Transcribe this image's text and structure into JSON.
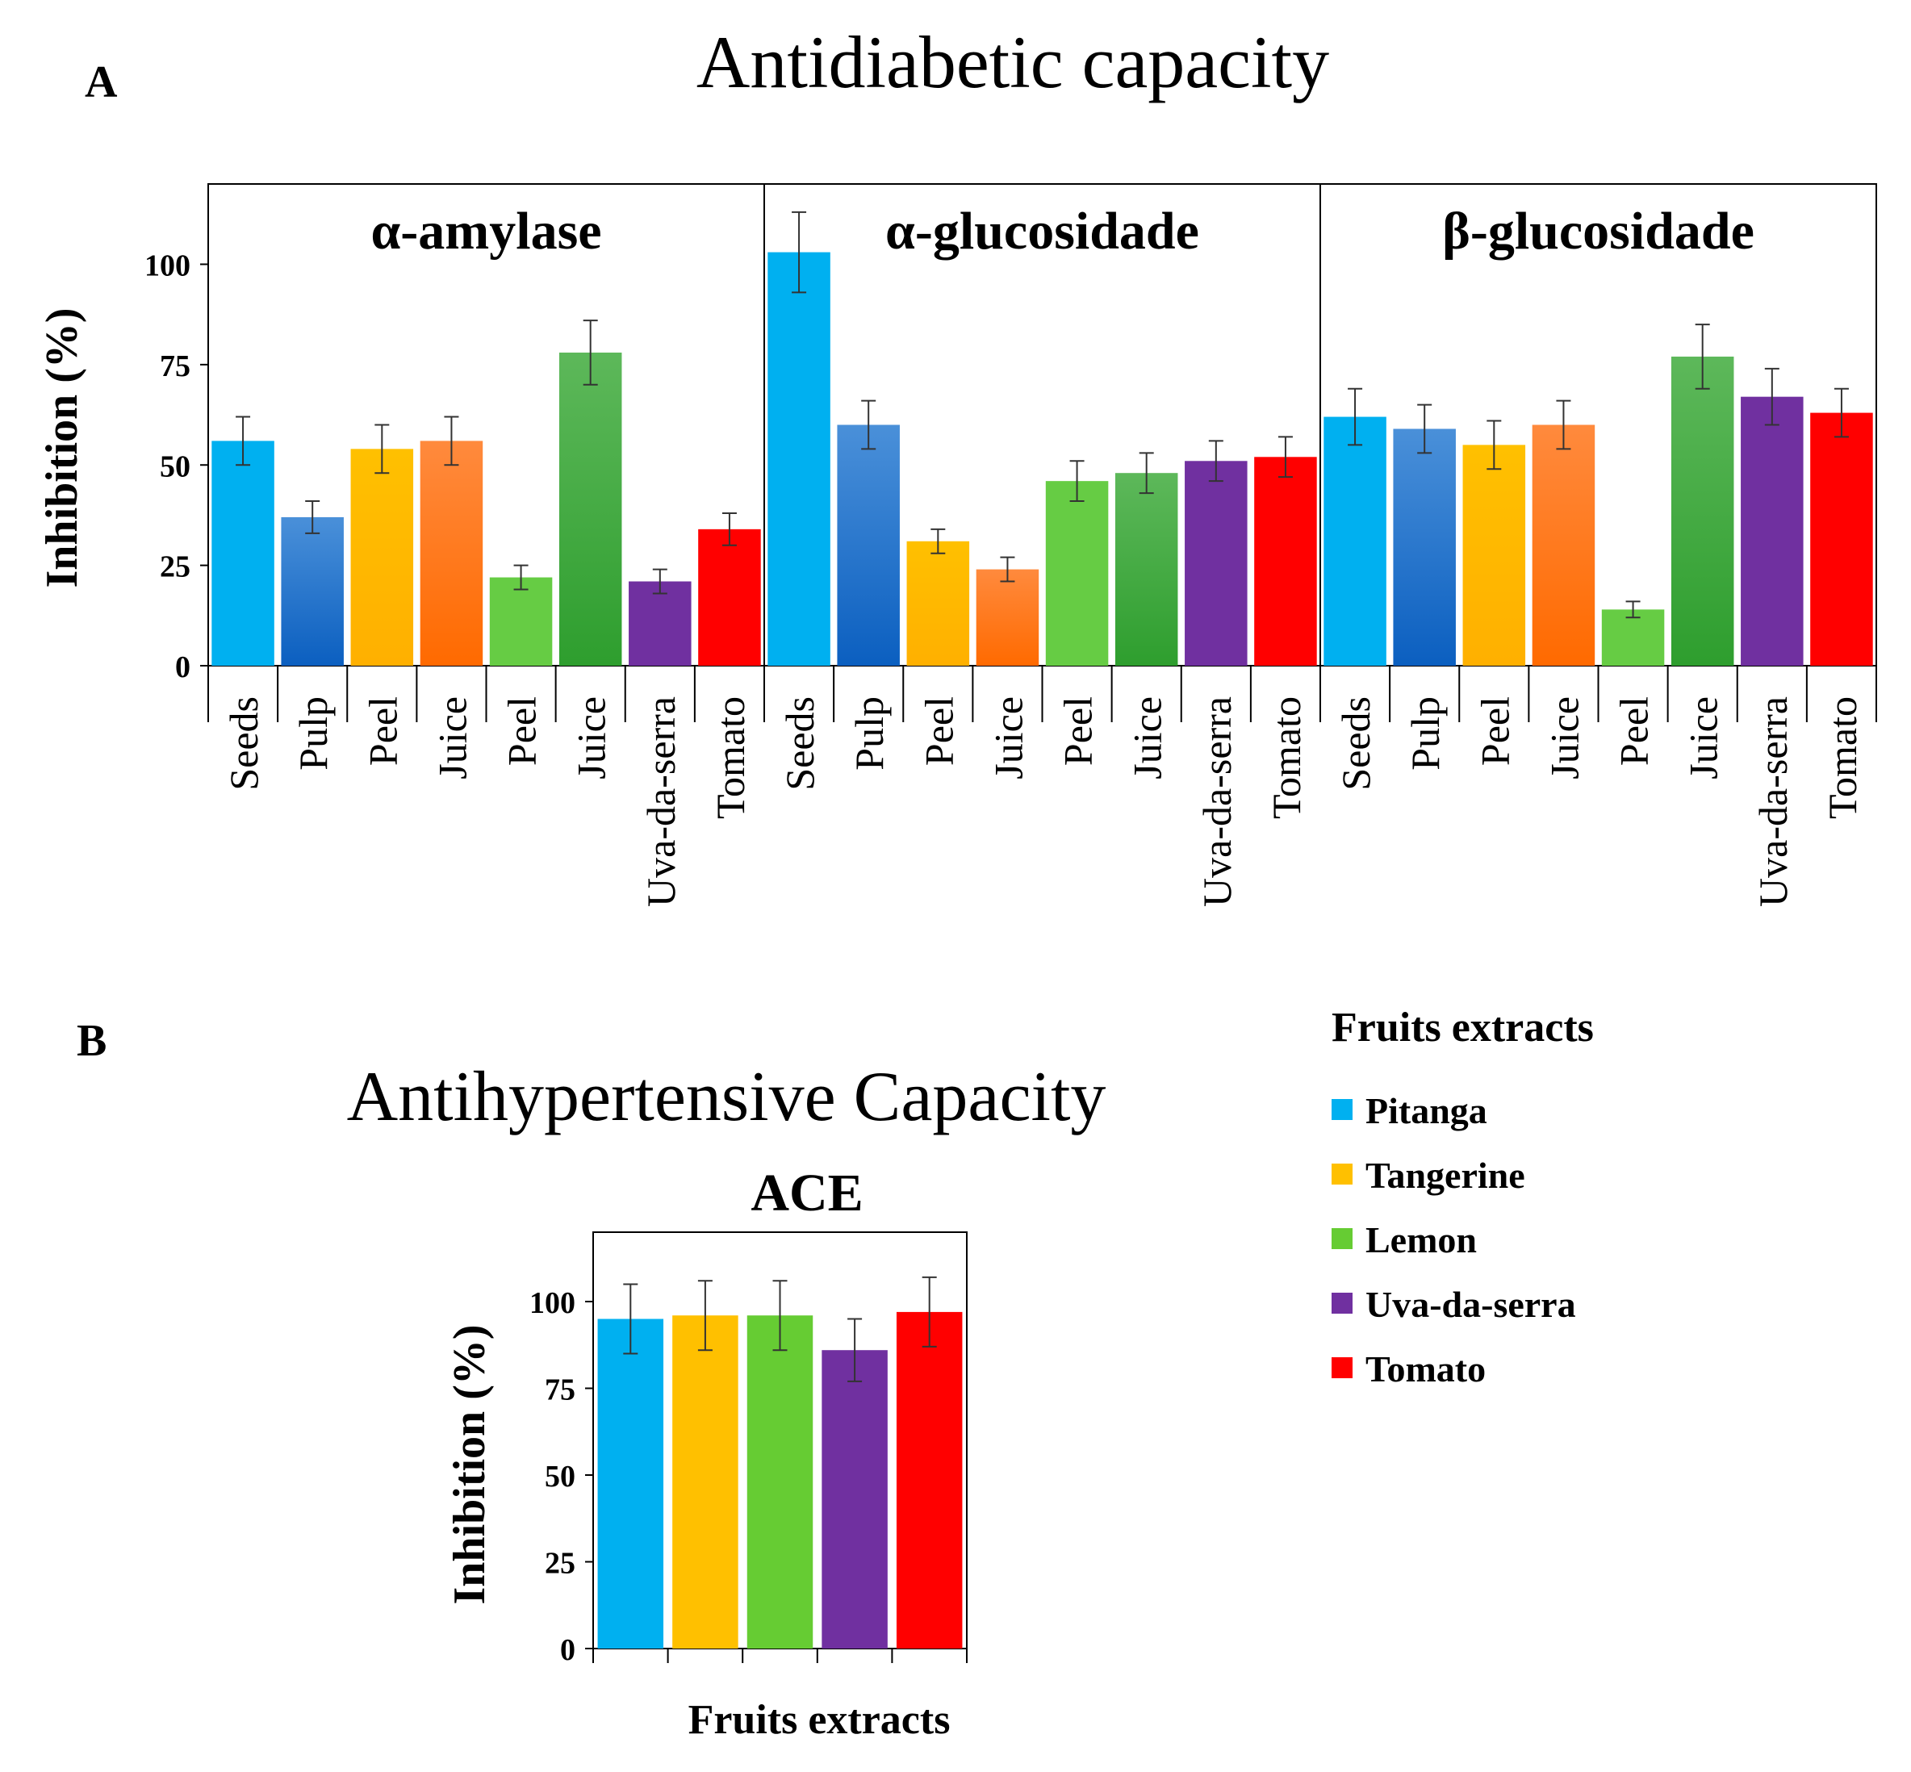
{
  "panel_labels": {
    "a": "A",
    "b": "B"
  },
  "legend": {
    "title": "Fruits extracts",
    "items": [
      {
        "label": "Pitanga",
        "color": "#00B0F0"
      },
      {
        "label": "Tangerine",
        "color": "#FFC000"
      },
      {
        "label": "Lemon",
        "color": "#66CC33"
      },
      {
        "label": "Uva-da-serra",
        "color": "#7030A0"
      },
      {
        "label": "Tomato",
        "color": "#FF0000"
      }
    ]
  },
  "chart_data": [
    {
      "type": "bar",
      "title": "Antidiabetic capacity",
      "ylabel": "Inhibition (%)",
      "ylim": [
        0,
        120
      ],
      "yticks": [
        0,
        25,
        50,
        75,
        100
      ],
      "categories": [
        "Seeds",
        "Pulp",
        "Peel",
        "Juice",
        "Peel",
        "Juice",
        "Uva-da-serra",
        "Tomato"
      ],
      "category_fruits": [
        "Pitanga",
        "Pitanga",
        "Tangerine",
        "Tangerine",
        "Lemon",
        "Lemon",
        "Uva-da-serra",
        "Tomato"
      ],
      "category_colors": [
        [
          "#00B0F0",
          "#00B0F0"
        ],
        [
          "#4A90D9",
          "#0B5FC0"
        ],
        [
          "#FFC000",
          "#FFB000"
        ],
        [
          "#FF8A3D",
          "#FF6A00"
        ],
        [
          "#66CC44",
          "#66CC44"
        ],
        [
          "#5DB85A",
          "#2E9E2E"
        ],
        [
          "#7030A0",
          "#7030A0"
        ],
        [
          "#FF0000",
          "#FF0000"
        ]
      ],
      "subplots": [
        {
          "title": "α-amylase",
          "values": [
            56,
            37,
            54,
            56,
            22,
            78,
            21,
            34
          ],
          "errors": [
            6,
            4,
            6,
            6,
            3,
            8,
            3,
            4
          ]
        },
        {
          "title": "α-glucosidade",
          "values": [
            103,
            60,
            31,
            24,
            46,
            48,
            51,
            52
          ],
          "errors": [
            10,
            6,
            3,
            3,
            5,
            5,
            5,
            5
          ]
        },
        {
          "title": "β-glucosidade",
          "values": [
            62,
            59,
            55,
            60,
            14,
            77,
            67,
            63
          ],
          "errors": [
            7,
            6,
            6,
            6,
            2,
            8,
            7,
            6
          ]
        }
      ]
    },
    {
      "type": "bar",
      "title": "Antihypertensive Capacity",
      "subtitle": "ACE",
      "xlabel": "Fruits extracts",
      "ylabel": "Inhibition (%)",
      "ylim": [
        0,
        120
      ],
      "yticks": [
        0,
        25,
        50,
        75,
        100
      ],
      "series": [
        {
          "name": "Pitanga",
          "value": 95,
          "error": 10,
          "color": "#00B0F0"
        },
        {
          "name": "Tangerine",
          "value": 96,
          "error": 10,
          "color": "#FFC000"
        },
        {
          "name": "Lemon",
          "value": 96,
          "error": 10,
          "color": "#66CC33"
        },
        {
          "name": "Uva-da-serra",
          "value": 86,
          "error": 9,
          "color": "#7030A0"
        },
        {
          "name": "Tomato",
          "value": 97,
          "error": 10,
          "color": "#FF0000"
        }
      ]
    }
  ]
}
